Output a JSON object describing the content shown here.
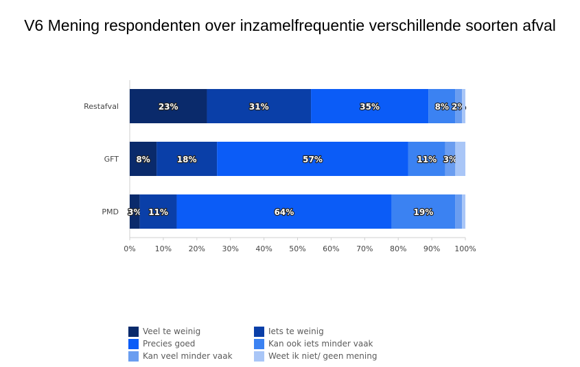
{
  "chart_data": {
    "type": "bar",
    "orientation": "horizontal",
    "stacked": true,
    "title": "V6 Mening respondenten over inzamelfrequentie verschillende soorten afval",
    "categories": [
      "Restafval",
      "GFT",
      "PMD"
    ],
    "series": [
      {
        "name": "Veel te weinig",
        "color": "#0a2a6b",
        "values": [
          23,
          8,
          3
        ],
        "labels": [
          "23%",
          "8%",
          "3%"
        ]
      },
      {
        "name": "Iets te weinig",
        "color": "#0a3fa8",
        "values": [
          31,
          18,
          11
        ],
        "labels": [
          "31%",
          "18%",
          "11%"
        ]
      },
      {
        "name": "Precies goed",
        "color": "#0b5cf7",
        "values": [
          35,
          57,
          64
        ],
        "labels": [
          "35%",
          "57%",
          "64%"
        ]
      },
      {
        "name": "Kan ook iets minder vaak",
        "color": "#3b82f2",
        "values": [
          8,
          11,
          19
        ],
        "labels": [
          "8%",
          "11%",
          "19%"
        ]
      },
      {
        "name": "Kan veel minder vaak",
        "color": "#6a9df0",
        "values": [
          2,
          3,
          2
        ],
        "labels": [
          "2%",
          "3%",
          ""
        ]
      },
      {
        "name": "Weet ik niet/ geen mening",
        "color": "#a9c6f7",
        "values": [
          1,
          3,
          1
        ],
        "labels": [
          "",
          "",
          ""
        ]
      }
    ],
    "xlim": [
      0,
      100
    ],
    "xticks": [
      "0%",
      "10%",
      "20%",
      "30%",
      "40%",
      "50%",
      "60%",
      "70%",
      "80%",
      "90%",
      "100%"
    ],
    "grid": false,
    "legend": "bottom"
  }
}
